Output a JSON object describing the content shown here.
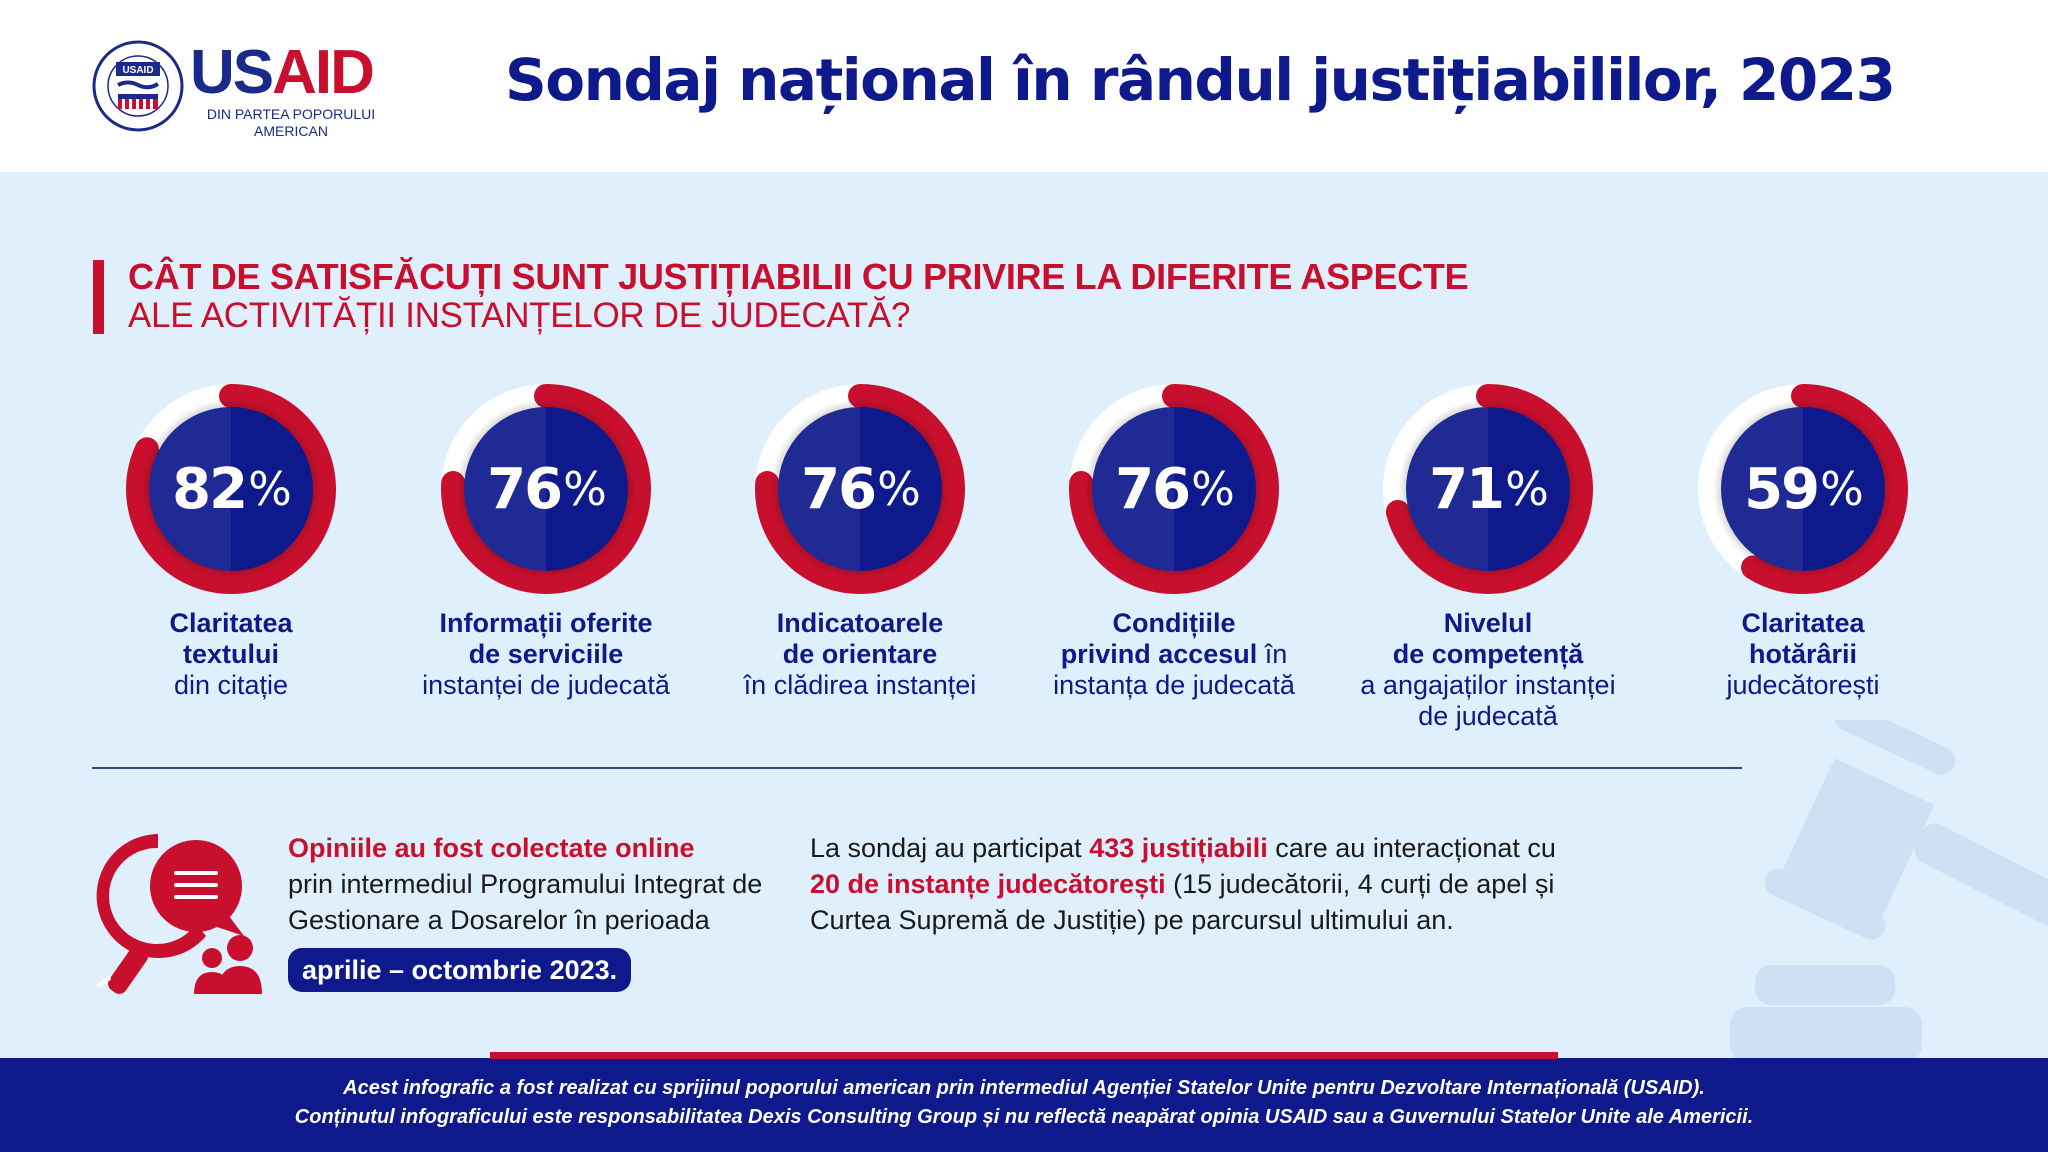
{
  "header": {
    "logo": {
      "seal_text": "USAID",
      "word_us": "US",
      "word_aid": "AID",
      "tagline_line1": "DIN PARTEA POPORULUI",
      "tagline_line2": "AMERICAN"
    },
    "title": "Sondaj național în rândul justițiabililor, 2023"
  },
  "question": {
    "line1": "CÂT DE SATISFĂCUȚI SUNT JUSTIȚIABILII CU PRIVIRE LA DIFERITE ASPECTE",
    "line2": "ALE ACTIVITĂȚII INSTANȚELOR DE JUDECATĂ?"
  },
  "colors": {
    "brand_blue": "#0e1a8c",
    "brand_red": "#c8102e",
    "background": "#dfeffc",
    "ring_track": "#ffffff"
  },
  "chart_data": {
    "type": "gauge",
    "title": "CÂT DE SATISFĂCUȚI SUNT JUSTIȚIABILII CU PRIVIRE LA DIFERITE ASPECTE ALE ACTIVITĂȚII INSTANȚELOR DE JUDECATĂ?",
    "unit": "%",
    "range": [
      0,
      100
    ],
    "items": [
      {
        "value": 82,
        "display": "82",
        "label_bold": [
          "Claritatea",
          "textului"
        ],
        "label_plain": [
          "din citație"
        ]
      },
      {
        "value": 76,
        "display": "76",
        "label_bold": [
          "Informații oferite",
          "de serviciile"
        ],
        "label_plain": [
          "instanței de judecată"
        ]
      },
      {
        "value": 76,
        "display": "76",
        "label_bold": [
          "Indicatoarele",
          "de orientare"
        ],
        "label_plain": [
          "în clădirea instanței"
        ]
      },
      {
        "value": 76,
        "display": "76",
        "label_bold": [
          "Condițiile"
        ],
        "label_mixed": {
          "bold": "privind accesul",
          "plain": " în"
        },
        "label_plain": [
          "instanța de judecată"
        ]
      },
      {
        "value": 71,
        "display": "71",
        "label_bold": [
          "Nivelul",
          "de competență"
        ],
        "label_plain": [
          "a angajaților instanței",
          "de judecată"
        ]
      },
      {
        "value": 59,
        "display": "59",
        "label_bold": [
          "Claritatea",
          "hotărârii"
        ],
        "label_plain": [
          "judecătorești"
        ]
      }
    ]
  },
  "collection": {
    "headline": "Opiniile au fost colectate online",
    "body": "prin intermediul Programului Integrat de Gestionare a Dosarelor în perioada",
    "period": "aprilie – octombrie 2023."
  },
  "summary": {
    "part1": "La sondaj au participat ",
    "highlight1": "433 justițiabili",
    "part2": " care au interacționat cu ",
    "highlight2": "20 de instanțe judecătorești",
    "part3": " (15 judecătorii, 4 curți de apel și Curtea Supremă de Justiție) pe parcursul ultimului an."
  },
  "footer": {
    "line1": "Acest infografic a fost realizat cu sprijinul poporului american prin intermediul Agenției Statelor Unite pentru Dezvoltare Internațională (USAID).",
    "line2": "Conținutul infograficului este responsabilitatea Dexis Consulting Group și nu reflectă neapărat opinia USAID sau a Guvernului Statelor Unite ale Americii."
  }
}
